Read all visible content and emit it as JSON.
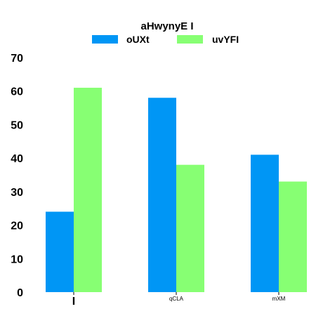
{
  "chart_data": {
    "type": "bar",
    "title": "aHwynyE I",
    "xlabel": "",
    "ylabel": "",
    "categories": [
      "I",
      "qCLA",
      "mXM"
    ],
    "series": [
      {
        "name": "oUXt",
        "color": "#0096F5",
        "values": [
          24,
          58,
          41
        ]
      },
      {
        "name": "uvYFI",
        "color": "#87FF73",
        "values": [
          61,
          38,
          33
        ]
      }
    ],
    "ylim": [
      0,
      70
    ],
    "yticks": [
      "0",
      "10",
      "20",
      "30",
      "40",
      "50",
      "60",
      "70"
    ],
    "grid": false,
    "legend": "top-center"
  }
}
